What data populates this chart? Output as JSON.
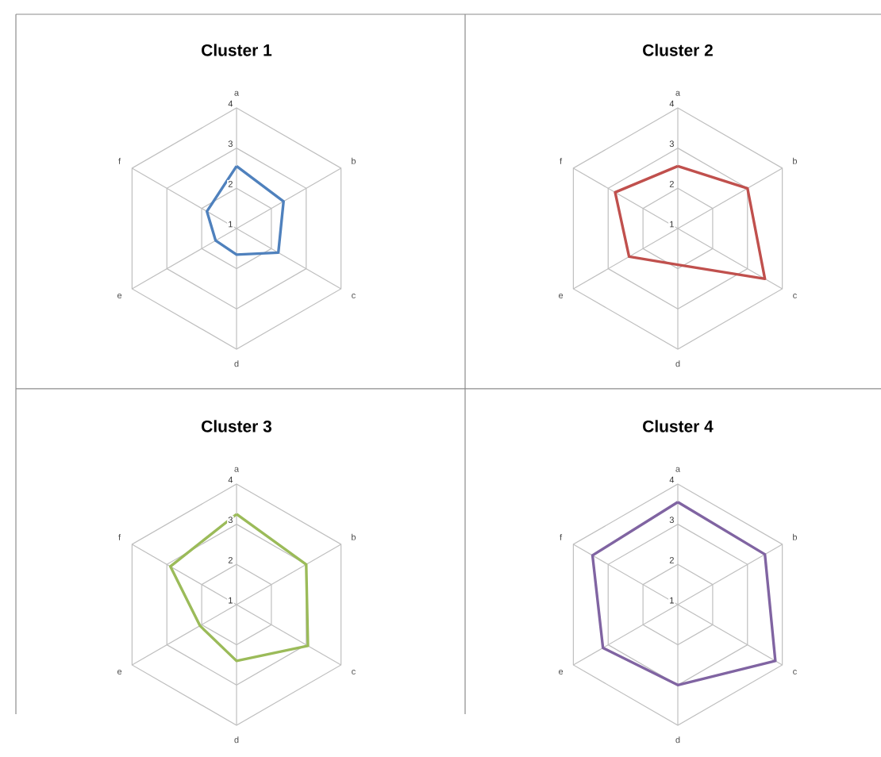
{
  "chart_data": [
    {
      "type": "radar",
      "title": "Cluster 1",
      "categories": [
        "a",
        "b",
        "c",
        "d",
        "e",
        "f"
      ],
      "ylim": [
        1,
        4
      ],
      "yticks": [
        1,
        2,
        3,
        4
      ],
      "series": [
        {
          "color": "#4f81bd",
          "values": [
            2.55,
            2.35,
            2.2,
            1.65,
            1.6,
            1.85
          ]
        }
      ]
    },
    {
      "type": "radar",
      "title": "Cluster 2",
      "categories": [
        "a",
        "b",
        "c",
        "d",
        "e",
        "f"
      ],
      "ylim": [
        1,
        4
      ],
      "yticks": [
        1,
        2,
        3,
        4
      ],
      "series": [
        {
          "color": "#c0504d",
          "values": [
            2.55,
            3.0,
            3.5,
            1.9,
            2.4,
            2.8
          ]
        }
      ]
    },
    {
      "type": "radar",
      "title": "Cluster 3",
      "categories": [
        "a",
        "b",
        "c",
        "d",
        "e",
        "f"
      ],
      "ylim": [
        1,
        4
      ],
      "yticks": [
        1,
        2,
        3,
        4
      ],
      "series": [
        {
          "color": "#9bbb59",
          "values": [
            3.25,
            3.0,
            3.05,
            2.4,
            2.05,
            2.9
          ]
        }
      ]
    },
    {
      "type": "radar",
      "title": "Cluster 4",
      "categories": [
        "a",
        "b",
        "c",
        "d",
        "e",
        "f"
      ],
      "ylim": [
        1,
        4
      ],
      "yticks": [
        1,
        2,
        3,
        4
      ],
      "series": [
        {
          "color": "#8064a2",
          "values": [
            3.55,
            3.5,
            3.8,
            3.0,
            3.15,
            3.45
          ]
        }
      ]
    }
  ]
}
